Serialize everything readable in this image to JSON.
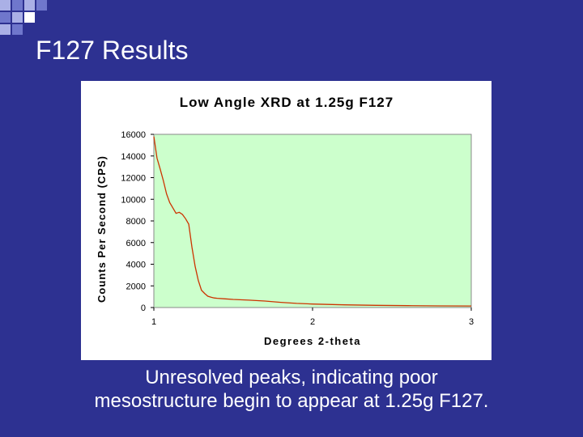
{
  "slide": {
    "title": "F127 Results",
    "caption_line1": "Unresolved peaks, indicating poor",
    "caption_line2": "mesostructure begin to appear at 1.25g F127.",
    "colors": {
      "background": "#2d3191",
      "plot_area": "#ccffcc",
      "line": "#cc3300",
      "text": "#ffffff"
    }
  },
  "chart_data": {
    "type": "line",
    "title": "Low Angle XRD at 1.25g F127",
    "xlabel": "Degrees 2-theta",
    "ylabel": "Counts Per Second (CPS)",
    "xlim": [
      1,
      3
    ],
    "ylim": [
      0,
      16000
    ],
    "xticks": [
      "1",
      "2",
      "3"
    ],
    "yticks": [
      "0",
      "2000",
      "4000",
      "6000",
      "8000",
      "10000",
      "12000",
      "14000",
      "16000"
    ],
    "grid": false,
    "legend": "none",
    "series": [
      {
        "x": [
          1.0,
          1.02,
          1.04,
          1.06,
          1.08,
          1.1,
          1.12,
          1.14,
          1.16,
          1.18,
          1.2,
          1.22,
          1.24,
          1.26,
          1.28,
          1.3,
          1.32,
          1.34,
          1.36,
          1.38,
          1.4,
          1.45,
          1.5,
          1.6,
          1.7,
          1.8,
          1.9,
          2.0,
          2.2,
          2.4,
          2.6,
          2.8,
          3.0
        ],
        "y": [
          15800,
          13800,
          12800,
          11700,
          10500,
          9700,
          9200,
          8700,
          8800,
          8600,
          8200,
          7700,
          5600,
          3800,
          2500,
          1600,
          1300,
          1050,
          950,
          880,
          850,
          800,
          750,
          680,
          600,
          480,
          380,
          320,
          250,
          200,
          170,
          150,
          140
        ]
      }
    ]
  }
}
